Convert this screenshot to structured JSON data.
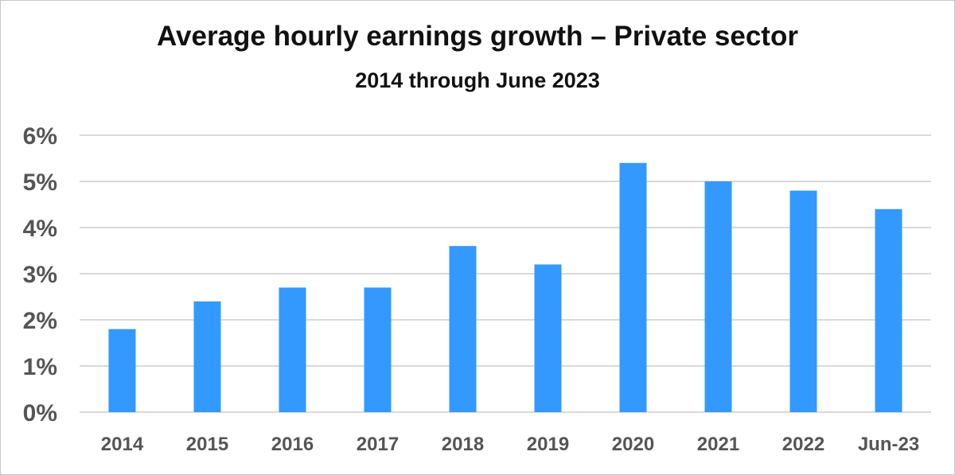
{
  "chart_data": {
    "type": "bar",
    "title": "Average hourly earnings growth – Private sector",
    "subtitle": "2014 through June 2023",
    "categories": [
      "2014",
      "2015",
      "2016",
      "2017",
      "2018",
      "2019",
      "2020",
      "2021",
      "2022",
      "Jun-23"
    ],
    "values": [
      1.8,
      2.4,
      2.7,
      2.7,
      3.6,
      3.2,
      5.4,
      5.0,
      4.8,
      4.4
    ],
    "value_unit": "%",
    "xlabel": "",
    "ylabel": "",
    "ylim": [
      0,
      6
    ],
    "yticks": [
      0,
      1,
      2,
      3,
      4,
      5,
      6
    ],
    "ytick_labels": [
      "0%",
      "1%",
      "2%",
      "3%",
      "4%",
      "5%",
      "6%"
    ],
    "grid": "horizontal",
    "legend": "none",
    "bar_color": "#3399ff",
    "grid_color": "#d9d9d9"
  }
}
